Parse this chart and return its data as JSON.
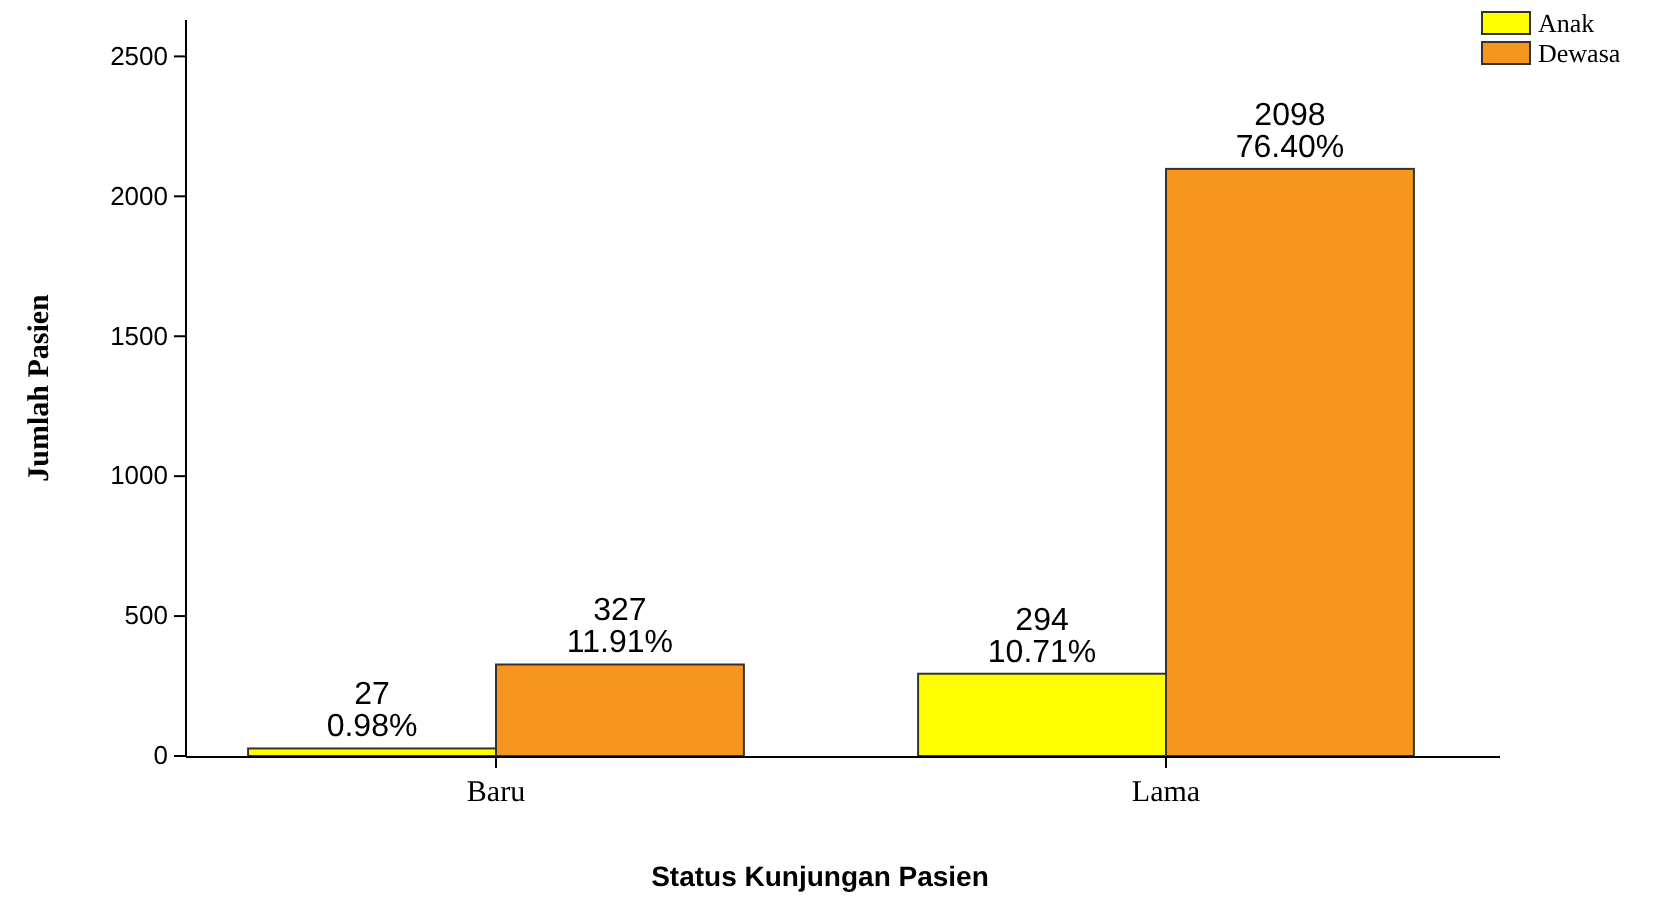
{
  "chart_data": {
    "type": "bar",
    "xlabel": "Status Kunjungan Pasien",
    "ylabel": "Jumlah Pasien",
    "categories": [
      "Baru",
      "Lama"
    ],
    "series": [
      {
        "name": "Anak",
        "color": "#ffff00",
        "values": [
          27,
          294
        ],
        "value_labels": [
          "27\n0.98%",
          "294\n10.71%"
        ]
      },
      {
        "name": "Dewasa",
        "color": "#f7961e",
        "values": [
          327,
          2098
        ],
        "value_labels": [
          "327\n11.91%",
          "2098\n76.40%"
        ]
      }
    ],
    "ylim": [
      0,
      2630
    ],
    "yticks": [
      0,
      500,
      1000,
      1500,
      2000,
      2500
    ],
    "grid": false,
    "legend": "top right"
  }
}
